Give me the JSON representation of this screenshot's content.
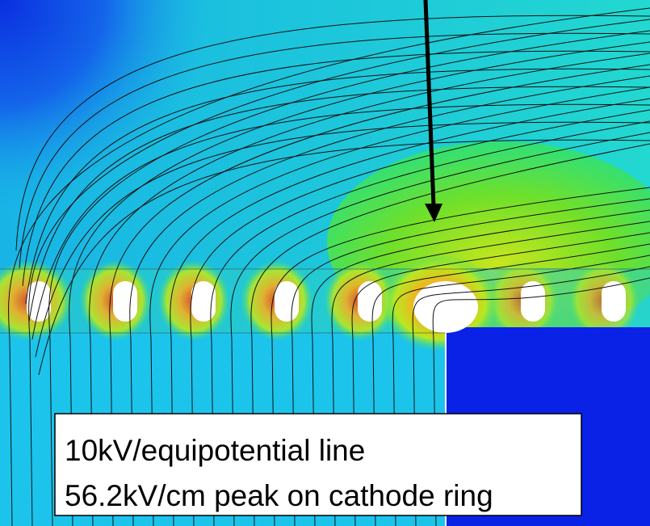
{
  "annotation": {
    "lines": [
      "10kV/equipotential line",
      "56.2kV/cm peak on cathode ring"
    ]
  }
}
